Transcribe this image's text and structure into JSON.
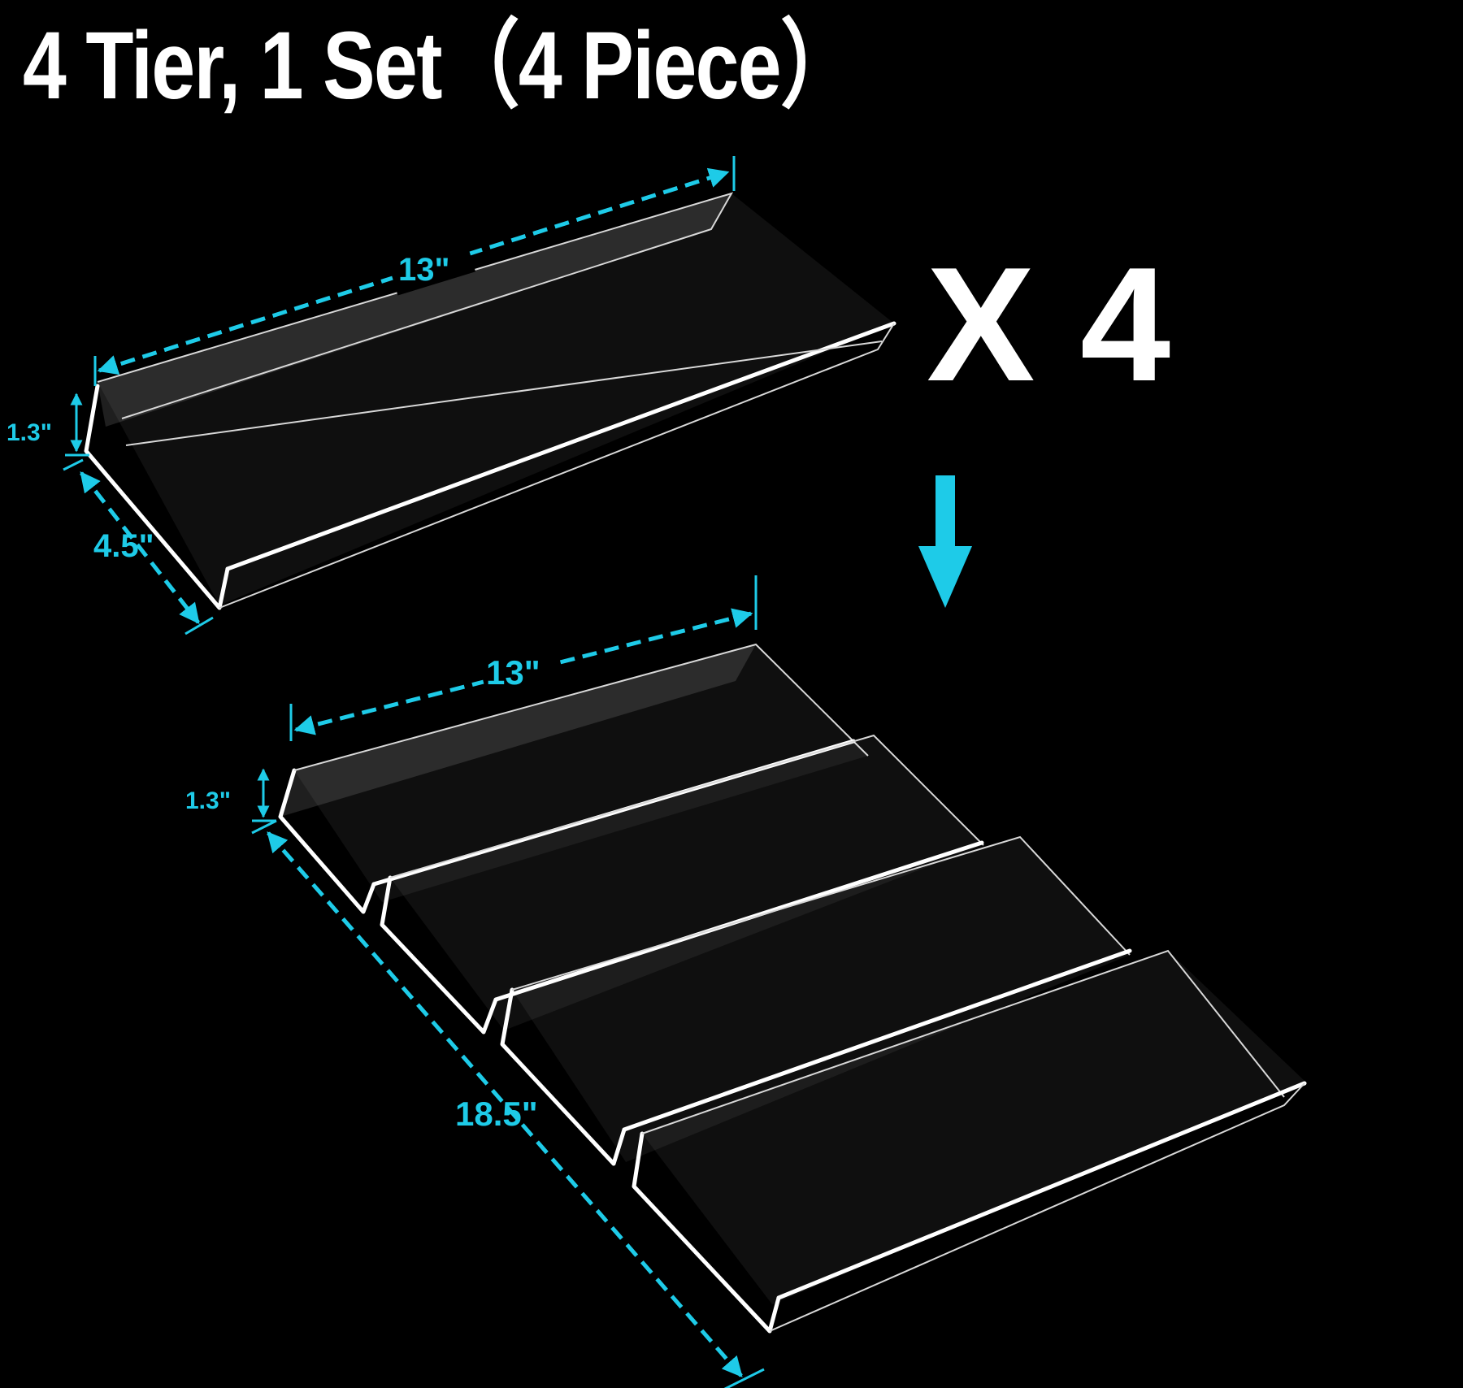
{
  "title": "4 Tier, 1 Set（4 Piece）",
  "multiplier": "X 4",
  "colors": {
    "background": "#000000",
    "accent": "#1ecbe8",
    "text": "#ffffff"
  },
  "single_piece": {
    "length": "13\"",
    "height": "1.3\"",
    "depth": "4.5\""
  },
  "assembled": {
    "length": "13\"",
    "height": "1.3\"",
    "depth": "18.5\""
  },
  "arrow": "down-arrow-icon"
}
